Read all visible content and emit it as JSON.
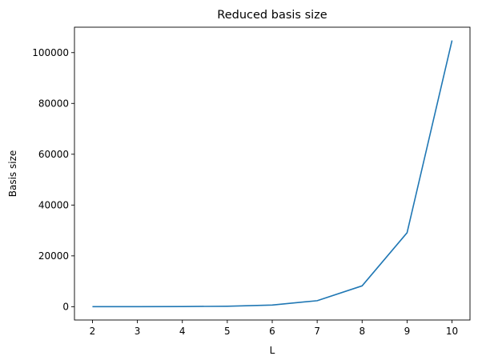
{
  "chart_data": {
    "type": "line",
    "title": "Reduced basis size",
    "xlabel": "L",
    "ylabel": "Basis size",
    "x": [
      2,
      3,
      4,
      5,
      6,
      7,
      8,
      9,
      10
    ],
    "series": [
      {
        "values": [
          4,
          14,
          54,
          184,
          640,
          2360,
          8200,
          29100,
          104800
        ],
        "color": "#1f77b4"
      }
    ],
    "xlim": [
      1.6,
      10.4
    ],
    "ylim": [
      -5240,
      110000
    ],
    "xticks": [
      "2",
      "3",
      "4",
      "5",
      "6",
      "7",
      "8",
      "9",
      "10"
    ],
    "yticks": [
      "0",
      "20000",
      "40000",
      "60000",
      "80000",
      "100000"
    ],
    "grid": false,
    "legend": "none"
  }
}
